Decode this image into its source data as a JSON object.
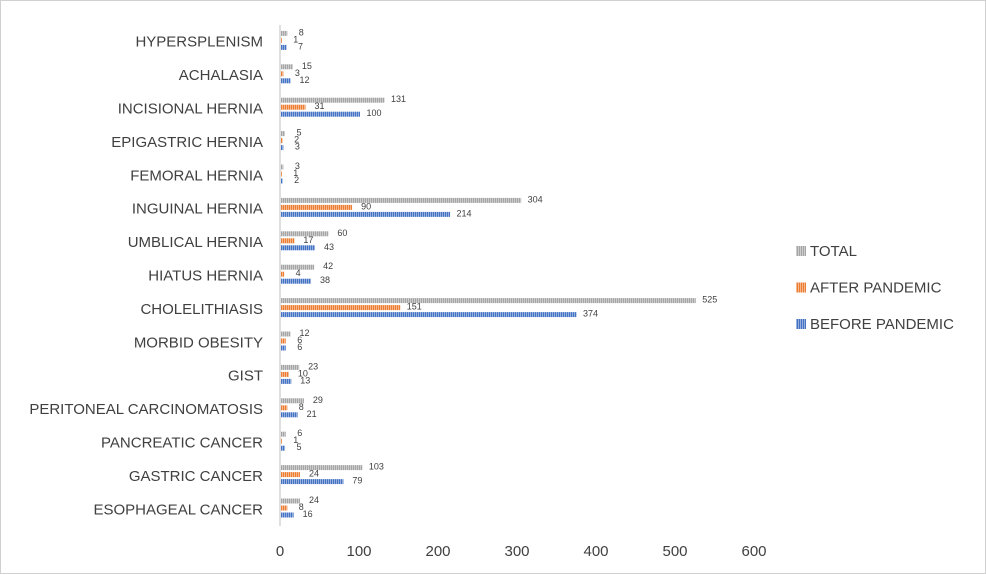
{
  "chart_data": {
    "type": "bar",
    "orientation": "horizontal",
    "categories": [
      "HYPERSPLENISM",
      "ACHALASIA",
      "INCISIONAL HERNIA",
      "EPIGASTRIC HERNIA",
      "FEMORAL HERNIA",
      "INGUINAL HERNIA",
      "UMBLICAL HERNIA",
      "HIATUS HERNIA",
      "CHOLELITHIASIS",
      "MORBID OBESITY",
      "GIST",
      "PERITONEAL CARCINOMATOSIS",
      "PANCREATIC CANCER",
      "GASTRIC CANCER",
      "ESOPHAGEAL CANCER"
    ],
    "series": [
      {
        "name": "TOTAL",
        "color": "#a5a5a5",
        "pattern": "vertical-stripes",
        "values": [
          8,
          15,
          131,
          5,
          3,
          304,
          60,
          42,
          525,
          12,
          23,
          29,
          6,
          103,
          24
        ]
      },
      {
        "name": "AFTER PANDEMIC",
        "color": "#ed7d31",
        "pattern": "vertical-stripes",
        "values": [
          1,
          3,
          31,
          2,
          1,
          90,
          17,
          4,
          151,
          6,
          10,
          8,
          1,
          24,
          8
        ]
      },
      {
        "name": "BEFORE PANDEMIC",
        "color": "#4472c4",
        "pattern": "vertical-stripes",
        "values": [
          7,
          12,
          100,
          3,
          2,
          214,
          43,
          38,
          374,
          6,
          13,
          21,
          5,
          79,
          16
        ]
      }
    ],
    "xticks": [
      0,
      100,
      200,
      300,
      400,
      500,
      600
    ],
    "xlim": [
      0,
      600
    ],
    "title": "",
    "xlabel": "",
    "ylabel": "",
    "grid": false,
    "legend_position": "right",
    "data_labels": true
  }
}
